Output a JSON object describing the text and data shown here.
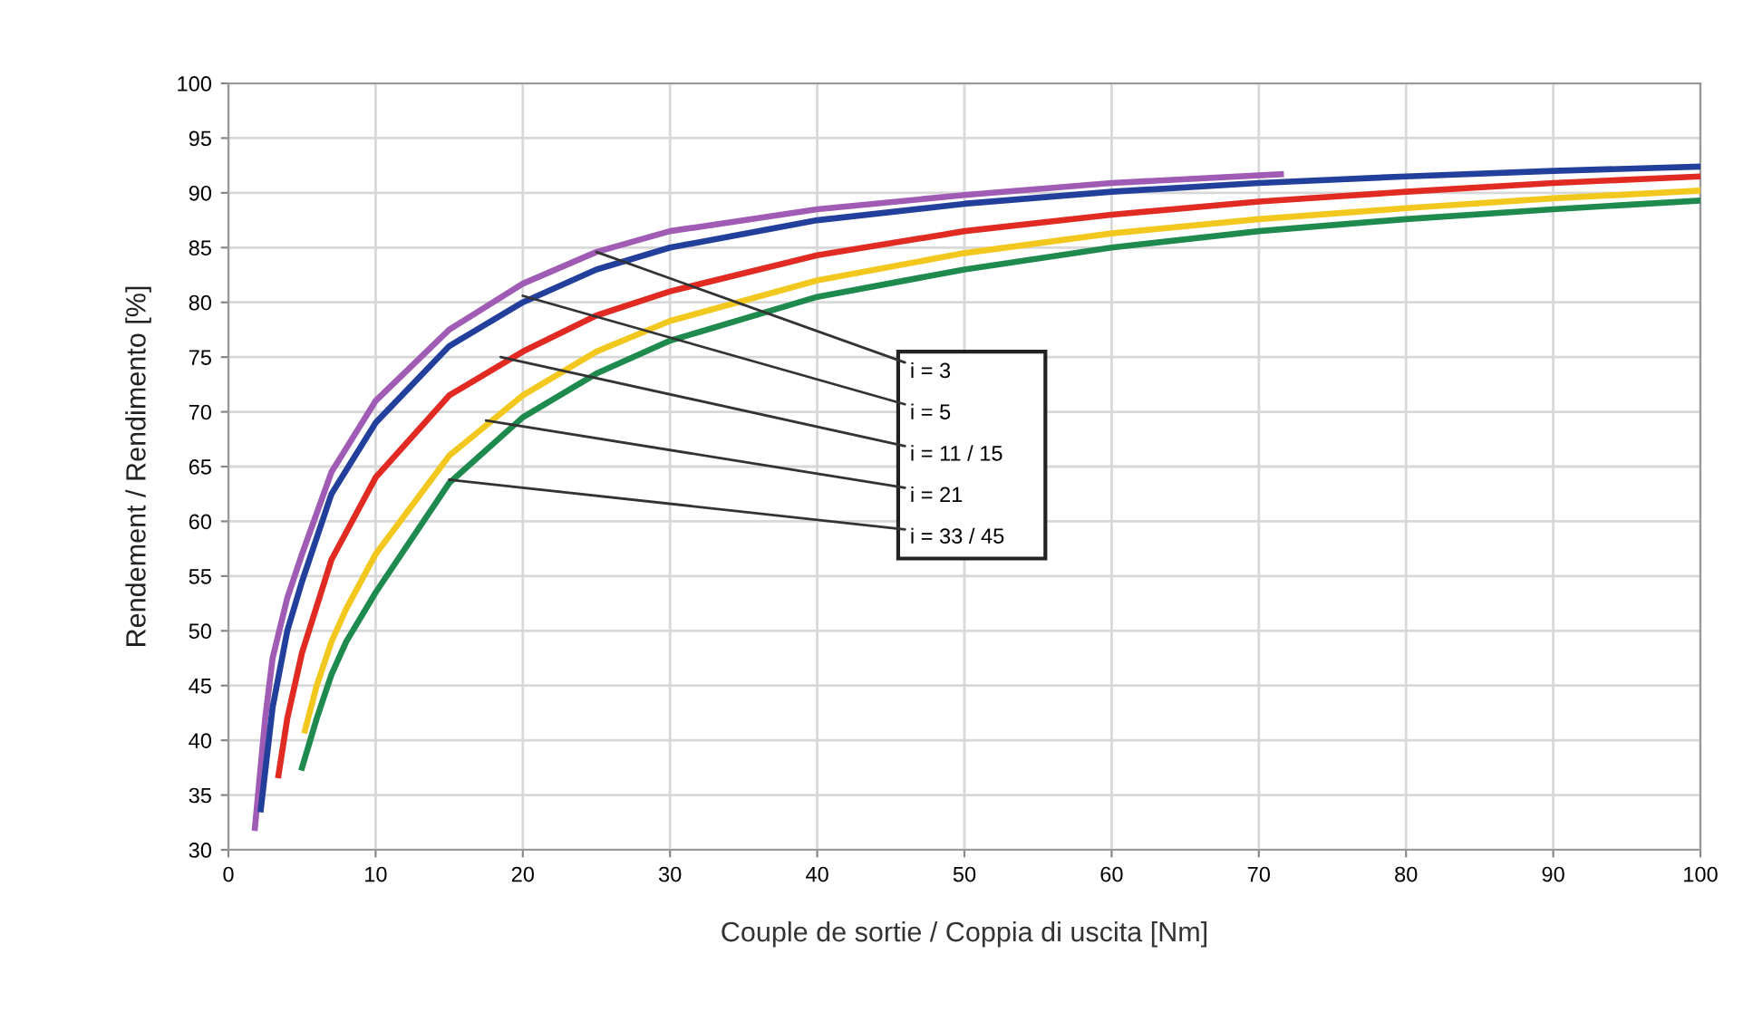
{
  "chart_data": {
    "type": "line",
    "xlabel": "Couple de sortie / Coppia di uscita [Nm]",
    "ylabel": "Rendement / Rendimento [%]",
    "xlim": [
      0,
      100
    ],
    "xticks": [
      0,
      10,
      20,
      30,
      40,
      50,
      60,
      70,
      80,
      90,
      100
    ],
    "ylim": [
      30,
      100
    ],
    "yticks": [
      30,
      35,
      40,
      45,
      50,
      55,
      60,
      65,
      70,
      75,
      80,
      85,
      90,
      95,
      100
    ],
    "grid": true,
    "legend": false,
    "marker": "none",
    "line_style": "solid",
    "series": [
      {
        "color": "#a05cb4",
        "x": [
          1.8,
          2.5,
          3,
          4,
          5,
          7,
          10,
          15,
          20,
          25,
          30,
          40,
          50,
          60,
          71.5
        ],
        "values": [
          32,
          42,
          47.5,
          53,
          57,
          64.5,
          71,
          77.5,
          81.7,
          84.6,
          86.5,
          88.5,
          89.8,
          90.9,
          91.7
        ]
      },
      {
        "color": "#233f9c",
        "x": [
          2.2,
          3,
          4,
          5,
          7,
          10,
          15,
          20,
          25,
          30,
          40,
          50,
          60,
          70,
          80,
          90,
          100
        ],
        "values": [
          33.7,
          43,
          50,
          54.5,
          62.5,
          69,
          76,
          80,
          83,
          85,
          87.5,
          89,
          90.1,
          90.9,
          91.5,
          92,
          92.4
        ]
      },
      {
        "color": "#e02a22",
        "x": [
          3.4,
          4,
          5,
          7,
          10,
          15,
          20,
          25,
          30,
          40,
          50,
          60,
          70,
          80,
          90,
          100
        ],
        "values": [
          36.8,
          42,
          48,
          56.5,
          64,
          71.5,
          75.5,
          78.8,
          81,
          84.3,
          86.5,
          88,
          89.2,
          90.1,
          90.9,
          91.5
        ]
      },
      {
        "color": "#f2c81e",
        "x": [
          5.2,
          6,
          7,
          8,
          10,
          15,
          20,
          25,
          30,
          40,
          50,
          60,
          70,
          80,
          90,
          100
        ],
        "values": [
          40.9,
          45,
          49,
          52,
          57,
          66,
          71.5,
          75.5,
          78.3,
          82,
          84.5,
          86.3,
          87.6,
          88.6,
          89.5,
          90.2
        ]
      },
      {
        "color": "#1e8a4e",
        "x": [
          5,
          6,
          7,
          8,
          10,
          15,
          20,
          25,
          30,
          40,
          50,
          60,
          70,
          80,
          90,
          100
        ],
        "values": [
          37.5,
          42,
          46,
          49,
          53.5,
          63.5,
          69.5,
          73.5,
          76.5,
          80.5,
          83,
          85,
          86.5,
          87.6,
          88.5,
          89.3
        ]
      }
    ],
    "annotations": [
      {
        "text": "i = 3",
        "x": 25,
        "y": 84.6
      },
      {
        "text": "i = 5",
        "x": 20,
        "y": 80.6
      },
      {
        "text": "i = 11 / 15",
        "x": 18.5,
        "y": 75
      },
      {
        "text": "i = 21",
        "x": 17.5,
        "y": 69.2
      },
      {
        "text": "i = 33 / 45",
        "x": 15,
        "y": 63.8
      }
    ]
  }
}
